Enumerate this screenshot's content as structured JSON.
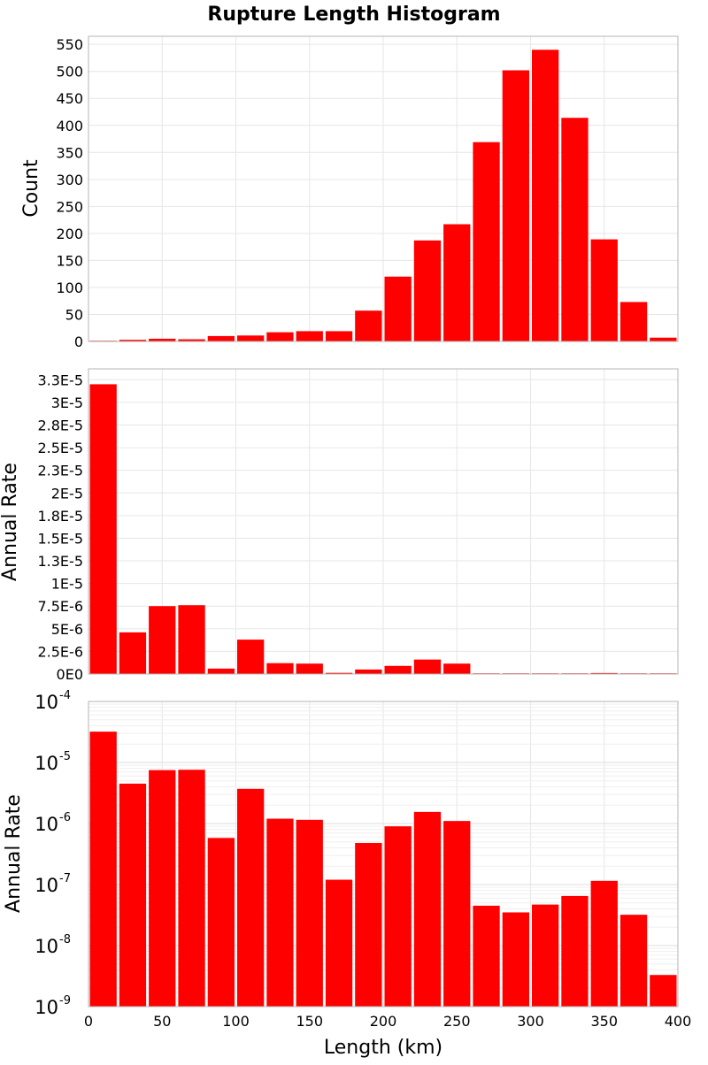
{
  "chart_data": {
    "title": "Rupture Length Histogram",
    "type": "bar",
    "xlabel": "Length (km)",
    "xlim": [
      0,
      400
    ],
    "x_ticks": [
      0,
      50,
      100,
      150,
      200,
      250,
      300,
      350,
      400
    ],
    "x_tick_labels": [
      "0",
      "50",
      "100",
      "150",
      "200",
      "250",
      "300",
      "350",
      "400"
    ],
    "bar_color": "#ff0000",
    "bin_width": 20,
    "bin_centers": [
      10,
      30,
      50,
      70,
      90,
      110,
      130,
      150,
      170,
      190,
      210,
      230,
      250,
      270,
      290,
      310,
      330,
      350,
      370,
      390
    ],
    "panels": [
      {
        "ylabel": "Count",
        "scale": "linear",
        "ylim": [
          0,
          565
        ],
        "y_ticks": [
          0,
          50,
          100,
          150,
          200,
          250,
          300,
          350,
          400,
          450,
          500,
          550
        ],
        "y_tick_labels": [
          "0",
          "50",
          "100",
          "150",
          "200",
          "250",
          "300",
          "350",
          "400",
          "450",
          "500",
          "550"
        ],
        "values": [
          1,
          3,
          5,
          4,
          10,
          11,
          17,
          19,
          19,
          57,
          120,
          187,
          217,
          369,
          502,
          540,
          414,
          189,
          73,
          7
        ]
      },
      {
        "ylabel": "Annual Rate",
        "scale": "linear",
        "ylim": [
          0,
          3.37e-05
        ],
        "y_ticks": [
          0,
          2.5e-06,
          5e-06,
          7.5e-06,
          1e-05,
          1.25e-05,
          1.5e-05,
          1.75e-05,
          2e-05,
          2.25e-05,
          2.5e-05,
          2.75e-05,
          3e-05,
          3.25e-05
        ],
        "y_tick_labels": [
          "0E0",
          "2.5E-6",
          "5E-6",
          "7.5E-6",
          "1E-5",
          "1.3E-5",
          "1.5E-5",
          "1.8E-5",
          "2E-5",
          "2.3E-5",
          "2.5E-5",
          "2.8E-5",
          "3E-5",
          "3.3E-5"
        ],
        "values": [
          3.2e-05,
          4.6e-06,
          7.5e-06,
          7.6e-06,
          6e-07,
          3.8e-06,
          1.2e-06,
          1.15e-06,
          1.3e-07,
          5e-07,
          9e-07,
          1.6e-06,
          1.15e-06,
          4e-08,
          3e-08,
          4e-08,
          6e-08,
          1.1e-07,
          3e-08,
          3e-09
        ]
      },
      {
        "ylabel": "Annual Rate",
        "scale": "log",
        "ylim": [
          1e-09,
          0.0001
        ],
        "y_ticks": [
          1e-09,
          1e-08,
          1e-07,
          1e-06,
          1e-05,
          0.0001
        ],
        "y_tick_labels": [
          {
            "base": "10",
            "exp": "-9"
          },
          {
            "base": "10",
            "exp": "-8"
          },
          {
            "base": "10",
            "exp": "-7"
          },
          {
            "base": "10",
            "exp": "-6"
          },
          {
            "base": "10",
            "exp": "-5"
          },
          {
            "base": "10",
            "exp": "-4"
          }
        ],
        "values": [
          3.2e-05,
          4.5e-06,
          7.5e-06,
          7.6e-06,
          5.8e-07,
          3.7e-06,
          1.2e-06,
          1.15e-06,
          1.2e-07,
          4.8e-07,
          9e-07,
          1.55e-06,
          1.1e-06,
          4.5e-08,
          3.5e-08,
          4.7e-08,
          6.5e-08,
          1.15e-07,
          3.2e-08,
          3.3e-09
        ]
      }
    ]
  }
}
